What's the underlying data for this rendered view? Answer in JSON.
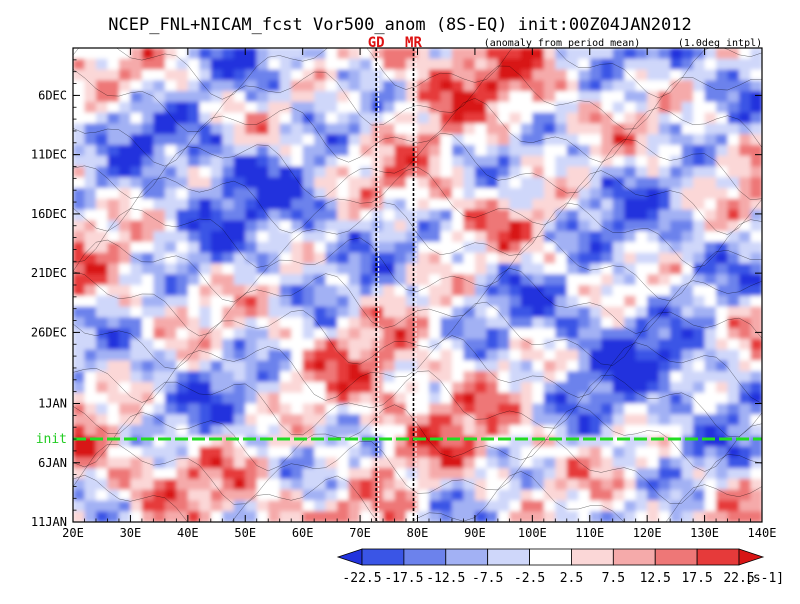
{
  "chart_data": {
    "type": "heatmap",
    "title": "NCEP_FNL+NICAM_fcst Vor500_anom (8S-EQ) init:00Z04JAN2012",
    "subtitle_left": "(anomaly from period mean)",
    "subtitle_right": "(1.0deg intpl)",
    "x": {
      "range": [
        20,
        140
      ],
      "ticks": [
        20,
        30,
        40,
        50,
        60,
        70,
        80,
        90,
        100,
        110,
        120,
        130,
        140
      ],
      "tick_labels": [
        "20E",
        "30E",
        "40E",
        "50E",
        "60E",
        "70E",
        "80E",
        "90E",
        "100E",
        "110E",
        "120E",
        "130E",
        "140E"
      ]
    },
    "y": {
      "range": [
        "2011-12-02",
        "2012-01-11"
      ],
      "ticks": [
        "2011-12-06",
        "2011-12-11",
        "2011-12-16",
        "2011-12-21",
        "2011-12-26",
        "2012-01-01",
        "2012-01-06",
        "2012-01-11"
      ],
      "tick_labels": [
        "6DEC",
        "11DEC",
        "16DEC",
        "21DEC",
        "26DEC",
        "1JAN",
        "6JAN",
        "11JAN"
      ],
      "inverted": true
    },
    "reference_lines": [
      {
        "label": "GD",
        "x": 72.8
      },
      {
        "label": "MR",
        "x": 79.3
      }
    ],
    "init_line": {
      "label": "init",
      "y": "2012-01-04"
    },
    "colorbar": {
      "levels": [
        -22.5,
        -17.5,
        -12.5,
        -7.5,
        -2.5,
        2.5,
        7.5,
        12.5,
        17.5,
        22.5
      ],
      "tick_labels": [
        "-22.5",
        "-17.5",
        "-12.5",
        "-7.5",
        "-2.5",
        "2.5",
        "7.5",
        "12.5",
        "17.5",
        "22.5"
      ],
      "units": "[s-1]",
      "colors": [
        "#2233dd",
        "#3a55e6",
        "#6c82ec",
        "#a2b1f4",
        "#cfd7fa",
        "#ffffff",
        "#fbd7d7",
        "#f5aaaa",
        "#ee7777",
        "#e63a3a",
        "#d81515"
      ]
    }
  }
}
